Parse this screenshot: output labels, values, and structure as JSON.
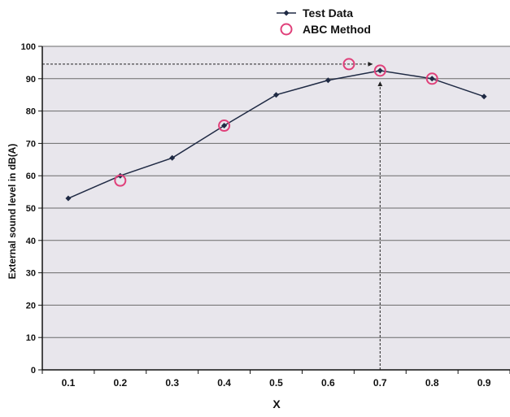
{
  "chart_data": {
    "type": "line",
    "title": "",
    "xlabel": "X",
    "ylabel": "External sound level in dB(A)",
    "xlim": [
      0.05,
      0.95
    ],
    "ylim": [
      0,
      100
    ],
    "x_ticks": [
      "0.1",
      "0.2",
      "0.3",
      "0.4",
      "0.5",
      "0.6",
      "0.7",
      "0.8",
      "0.9"
    ],
    "y_ticks": [
      "0",
      "10",
      "20",
      "30",
      "40",
      "50",
      "60",
      "70",
      "80",
      "90",
      "100"
    ],
    "grid": "horizontal",
    "legend_position": "top",
    "series": [
      {
        "name": "Test Data",
        "marker": "diamond",
        "color": "#1f2a44",
        "x": [
          0.1,
          0.2,
          0.3,
          0.4,
          0.5,
          0.6,
          0.7,
          0.8,
          0.9
        ],
        "y": [
          53,
          60,
          65.5,
          75.5,
          85,
          89.5,
          92.5,
          90,
          84.5
        ]
      },
      {
        "name": "ABC Method",
        "marker": "open-circle",
        "color": "#e0407a",
        "x": [
          0.2,
          0.4,
          0.64,
          0.7,
          0.8
        ],
        "y": [
          58.5,
          75.5,
          94.5,
          92.5,
          90
        ]
      }
    ],
    "annotations": [
      {
        "type": "dashed-arrow",
        "from": [
          0.05,
          94.5
        ],
        "to": [
          0.685,
          94.5
        ]
      },
      {
        "type": "dashed-arrow",
        "from": [
          0.7,
          0
        ],
        "to": [
          0.7,
          89
        ]
      }
    ]
  },
  "colors": {
    "plot_background": "#e8e6ec",
    "gridline": "#6a6a6a",
    "axis": "#111111",
    "arrow": "#222222"
  }
}
